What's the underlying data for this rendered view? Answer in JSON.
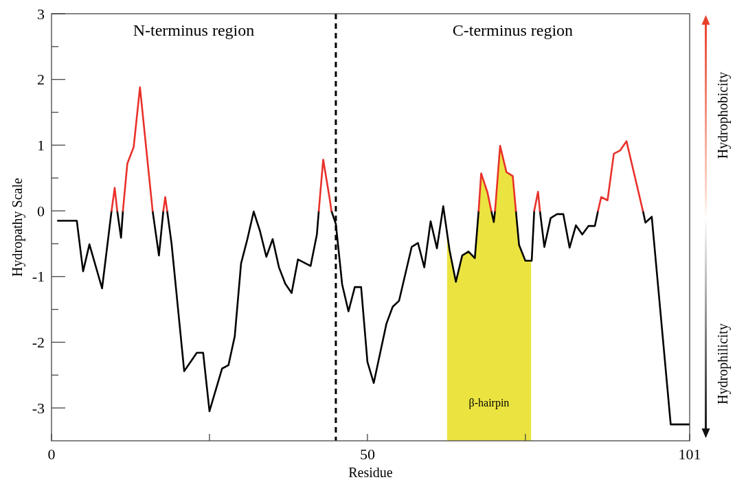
{
  "chart_data": {
    "type": "line",
    "xlabel": "Residue",
    "ylabel": "Hydropathy Scale",
    "xlim": [
      0,
      101
    ],
    "ylim": [
      -3.5,
      3
    ],
    "xticks": [
      0,
      {
        "value": 25,
        "label": null
      },
      50,
      {
        "value": 75,
        "label": null
      },
      101
    ],
    "yticks": [
      -3,
      {
        "value": -2.5,
        "label": null
      },
      -2,
      {
        "value": -1.5,
        "label": null
      },
      -1,
      {
        "value": -0.5,
        "label": null
      },
      0,
      {
        "value": 0.5,
        "label": null
      },
      1,
      {
        "value": 1.5,
        "label": null
      },
      2,
      {
        "value": 2.5,
        "label": null
      },
      3
    ],
    "grid": false,
    "marker": "none",
    "line_style": "solid",
    "series": [
      {
        "color": "#000000",
        "x": [
          1,
          4,
          5,
          6,
          8,
          9.5,
          null,
          10.4,
          11,
          11.3,
          null,
          16,
          17,
          17.7,
          null,
          18.3,
          19,
          21,
          23,
          24,
          25,
          27,
          28,
          29,
          30,
          31,
          32,
          33,
          34,
          35,
          36,
          37,
          38,
          39,
          41,
          42,
          42.3,
          null,
          44.3,
          45,
          46,
          47,
          48,
          49,
          50,
          51,
          53,
          54,
          55,
          57,
          58,
          59,
          60,
          61,
          62,
          63,
          64,
          65,
          66,
          67,
          67.6,
          null,
          69.6,
          70,
          70.2,
          null,
          73.5,
          74,
          75,
          76,
          76.4,
          null,
          77.3,
          78,
          79,
          80,
          81,
          82,
          83,
          84,
          85,
          86,
          86.5,
          null,
          93.6,
          94,
          95,
          98,
          101
        ],
        "values": [
          -0.15,
          -0.15,
          -0.92,
          -0.51,
          -1.18,
          0,
          null,
          0,
          -0.41,
          0,
          null,
          0,
          -0.68,
          0,
          null,
          0,
          -0.5,
          -2.44,
          -2.16,
          -2.16,
          -3.05,
          -2.4,
          -2.35,
          -1.91,
          -0.8,
          -0.43,
          -0.01,
          -0.31,
          -0.7,
          -0.43,
          -0.86,
          -1.11,
          -1.25,
          -0.74,
          -0.84,
          -0.36,
          0,
          null,
          0,
          -0.2,
          -1.12,
          -1.53,
          -1.16,
          -1.16,
          -2.3,
          -2.62,
          -1.72,
          -1.46,
          -1.37,
          -0.55,
          -0.49,
          -0.86,
          -0.16,
          -0.57,
          0.07,
          -0.6,
          -1.08,
          -0.68,
          -0.62,
          -0.72,
          0,
          null,
          0,
          -0.17,
          0,
          null,
          0,
          -0.52,
          -0.76,
          -0.76,
          0,
          null,
          0,
          -0.55,
          -0.11,
          -0.05,
          -0.05,
          -0.56,
          -0.22,
          -0.36,
          -0.23,
          -0.23,
          0,
          null,
          0,
          -0.18,
          -0.09,
          -3.25,
          -3.25
        ]
      },
      {
        "color": "#e8312a",
        "x": [
          9.5,
          10,
          10.4,
          null,
          11.3,
          12,
          13,
          14,
          16,
          null,
          17.7,
          18,
          18.3,
          null,
          42.3,
          43,
          44,
          44.3,
          null,
          67.6,
          68,
          69,
          69.6,
          null,
          70.2,
          71,
          72,
          73,
          73.5,
          null,
          76.4,
          77,
          77.3,
          null,
          86.5,
          87,
          88,
          89,
          90,
          91,
          93.6
        ],
        "values": [
          0,
          0.35,
          0,
          null,
          0,
          0.72,
          0.97,
          1.88,
          0,
          null,
          0,
          0.21,
          0,
          null,
          0,
          0.78,
          0.2,
          0,
          null,
          0,
          0.57,
          0.28,
          0,
          null,
          0,
          0.99,
          0.59,
          0.53,
          0,
          null,
          0,
          0.29,
          0,
          null,
          0,
          0.21,
          0.16,
          0.87,
          0.92,
          1.06,
          0
        ]
      }
    ],
    "ref_lines": [
      {
        "axis": "x",
        "value": 45,
        "color": "#000000",
        "line_style": "dashed"
      }
    ],
    "bands": [
      {
        "axis": "x",
        "from": 62.6,
        "to": 75.9,
        "label": "β-hairpin",
        "color": "#ebe440"
      }
    ],
    "annotations": [
      "N-terminus region",
      "C-terminus region",
      "Hydrophobicity",
      "Hydrophilicity"
    ]
  }
}
